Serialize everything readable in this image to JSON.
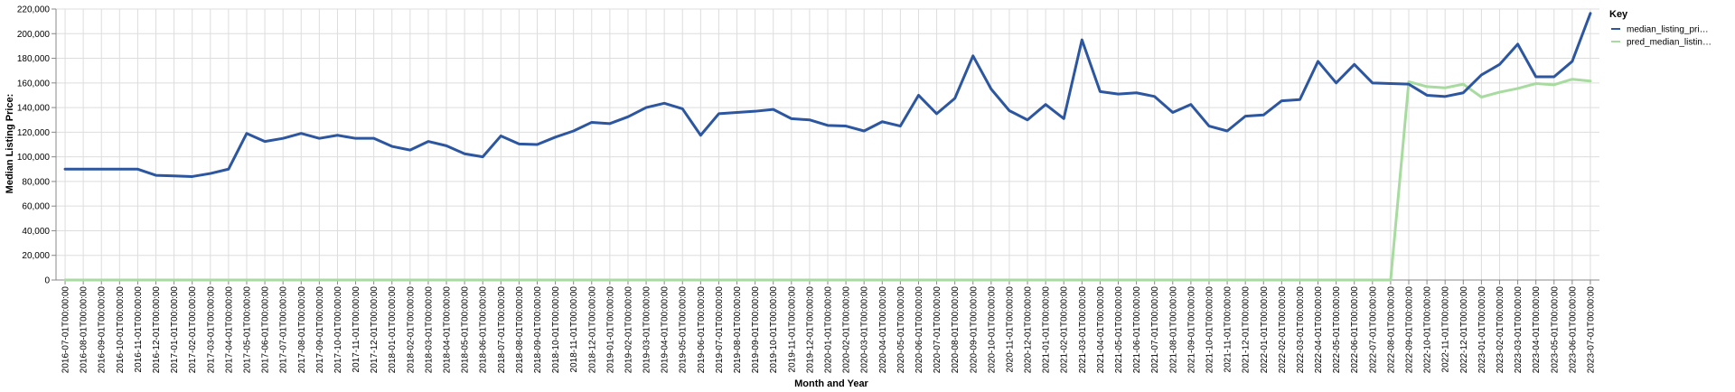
{
  "chart_data": {
    "type": "line",
    "title": "",
    "xlabel": "Month and Year",
    "ylabel": "Median Listing Price:",
    "ylim": [
      0,
      220000
    ],
    "yticks": [
      0,
      20000,
      40000,
      60000,
      80000,
      100000,
      120000,
      140000,
      160000,
      180000,
      200000,
      220000
    ],
    "ytick_labels": [
      "0",
      "20,000",
      "40,000",
      "60,000",
      "80,000",
      "100,000",
      "120,000",
      "140,000",
      "160,000",
      "180,000",
      "200,000",
      "220,000"
    ],
    "grid": true,
    "legend": {
      "title": "Key",
      "placement": "top-right"
    },
    "x": [
      "2016-07-01T00:00:00",
      "2016-08-01T00:00:00",
      "2016-09-01T00:00:00",
      "2016-10-01T00:00:00",
      "2016-11-01T00:00:00",
      "2016-12-01T00:00:00",
      "2017-01-01T00:00:00",
      "2017-02-01T00:00:00",
      "2017-03-01T00:00:00",
      "2017-04-01T00:00:00",
      "2017-05-01T00:00:00",
      "2017-06-01T00:00:00",
      "2017-07-01T00:00:00",
      "2017-08-01T00:00:00",
      "2017-09-01T00:00:00",
      "2017-10-01T00:00:00",
      "2017-11-01T00:00:00",
      "2017-12-01T00:00:00",
      "2018-01-01T00:00:00",
      "2018-02-01T00:00:00",
      "2018-03-01T00:00:00",
      "2018-04-01T00:00:00",
      "2018-05-01T00:00:00",
      "2018-06-01T00:00:00",
      "2018-07-01T00:00:00",
      "2018-08-01T00:00:00",
      "2018-09-01T00:00:00",
      "2018-10-01T00:00:00",
      "2018-11-01T00:00:00",
      "2018-12-01T00:00:00",
      "2019-01-01T00:00:00",
      "2019-02-01T00:00:00",
      "2019-03-01T00:00:00",
      "2019-04-01T00:00:00",
      "2019-05-01T00:00:00",
      "2019-06-01T00:00:00",
      "2019-07-01T00:00:00",
      "2019-08-01T00:00:00",
      "2019-09-01T00:00:00",
      "2019-10-01T00:00:00",
      "2019-11-01T00:00:00",
      "2019-12-01T00:00:00",
      "2020-01-01T00:00:00",
      "2020-02-01T00:00:00",
      "2020-03-01T00:00:00",
      "2020-04-01T00:00:00",
      "2020-05-01T00:00:00",
      "2020-06-01T00:00:00",
      "2020-07-01T00:00:00",
      "2020-08-01T00:00:00",
      "2020-09-01T00:00:00",
      "2020-10-01T00:00:00",
      "2020-11-01T00:00:00",
      "2020-12-01T00:00:00",
      "2021-01-01T00:00:00",
      "2021-02-01T00:00:00",
      "2021-03-01T00:00:00",
      "2021-04-01T00:00:00",
      "2021-05-01T00:00:00",
      "2021-06-01T00:00:00",
      "2021-07-01T00:00:00",
      "2021-08-01T00:00:00",
      "2021-09-01T00:00:00",
      "2021-10-01T00:00:00",
      "2021-11-01T00:00:00",
      "2021-12-01T00:00:00",
      "2022-01-01T00:00:00",
      "2022-02-01T00:00:00",
      "2022-03-01T00:00:00",
      "2022-04-01T00:00:00",
      "2022-05-01T00:00:00",
      "2022-06-01T00:00:00",
      "2022-07-01T00:00:00",
      "2022-08-01T00:00:00",
      "2022-09-01T00:00:00",
      "2022-10-01T00:00:00",
      "2022-11-01T00:00:00",
      "2022-12-01T00:00:00",
      "2023-01-01T00:00:00",
      "2023-02-01T00:00:00",
      "2023-03-01T00:00:00",
      "2023-04-01T00:00:00",
      "2023-05-01T00:00:00",
      "2023-06-01T00:00:00",
      "2023-07-01T00:00:00"
    ],
    "series": [
      {
        "name": "median_listing_pri…",
        "color": "#2c56a0",
        "values": [
          90000,
          90000,
          90000,
          90000,
          90000,
          85000,
          84500,
          84000,
          86500,
          90000,
          119000,
          112500,
          115000,
          119000,
          115000,
          117500,
          115000,
          115000,
          108500,
          105500,
          112500,
          109000,
          102500,
          100000,
          117000,
          110500,
          110000,
          116000,
          121000,
          128000,
          127000,
          132500,
          140000,
          143500,
          139000,
          117500,
          135000,
          136000,
          137000,
          138500,
          131000,
          130000,
          125500,
          125000,
          121000,
          128500,
          125000,
          150000,
          135000,
          147500,
          182000,
          155000,
          137500,
          130000,
          142500,
          131000,
          195000,
          153000,
          151000,
          152000,
          149000,
          136000,
          142500,
          125000,
          121000,
          133000,
          134000,
          145500,
          146500,
          177500,
          160000,
          175000,
          160000,
          159500,
          159000,
          150000,
          149000,
          152000,
          166500,
          175000,
          191500,
          165000,
          165000,
          177500,
          216500
        ]
      },
      {
        "name": "pred_median_listin…",
        "color": "#a8dba0",
        "values": [
          0,
          0,
          0,
          0,
          0,
          0,
          0,
          0,
          0,
          0,
          0,
          0,
          0,
          0,
          0,
          0,
          0,
          0,
          0,
          0,
          0,
          0,
          0,
          0,
          0,
          0,
          0,
          0,
          0,
          0,
          0,
          0,
          0,
          0,
          0,
          0,
          0,
          0,
          0,
          0,
          0,
          0,
          0,
          0,
          0,
          0,
          0,
          0,
          0,
          0,
          0,
          0,
          0,
          0,
          0,
          0,
          0,
          0,
          0,
          0,
          0,
          0,
          0,
          0,
          0,
          0,
          0,
          0,
          0,
          0,
          0,
          0,
          0,
          0,
          161000,
          157000,
          156000,
          159000,
          148500,
          152500,
          155500,
          159500,
          158500,
          163000,
          161500
        ]
      }
    ]
  }
}
